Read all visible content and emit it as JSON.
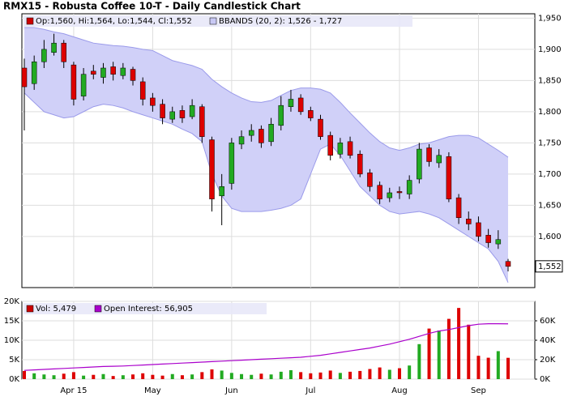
{
  "chart_data": [
    {
      "type": "candlestick",
      "title": "RMX15 - Robusta Coffee 10-T - Daily Candlestick Chart",
      "legend": [
        {
          "name": "Op:1,560, Hi:1,564, Lo:1,544, Cl:1,552",
          "color": "#cc0000"
        },
        {
          "name": "BBANDS (20, 2): 1,526 - 1,727",
          "color": "#c8c8f4"
        }
      ],
      "categories": [
        null,
        null,
        null,
        null,
        null,
        "Apr 15",
        null,
        null,
        null,
        null,
        null,
        null,
        null,
        "May",
        null,
        null,
        null,
        null,
        null,
        null,
        null,
        "Jun",
        null,
        null,
        null,
        null,
        null,
        null,
        null,
        "Jul",
        null,
        null,
        null,
        null,
        null,
        null,
        null,
        null,
        "Aug",
        null,
        null,
        null,
        null,
        null,
        null,
        null,
        "Sep",
        null,
        null,
        null
      ],
      "open": [
        1870,
        1845,
        1880,
        1895,
        1910,
        1875,
        1825,
        1865,
        1855,
        1872,
        1858,
        1868,
        1848,
        1822,
        1812,
        1788,
        1802,
        1792,
        1808,
        1755,
        1665,
        1685,
        1748,
        1762,
        1772,
        1752,
        1778,
        1808,
        1822,
        1802,
        1788,
        1762,
        1732,
        1752,
        1732,
        1702,
        1682,
        1662,
        1672,
        1668,
        1692,
        1742,
        1718,
        1728,
        1662,
        1628,
        1622,
        1602,
        1588,
        1560
      ],
      "high": [
        1885,
        1890,
        1915,
        1925,
        1915,
        1880,
        1870,
        1875,
        1878,
        1880,
        1878,
        1872,
        1855,
        1830,
        1820,
        1808,
        1810,
        1820,
        1812,
        1760,
        1700,
        1758,
        1770,
        1780,
        1778,
        1790,
        1825,
        1835,
        1828,
        1808,
        1795,
        1768,
        1758,
        1760,
        1738,
        1708,
        1688,
        1678,
        1680,
        1698,
        1750,
        1748,
        1740,
        1735,
        1668,
        1640,
        1632,
        1612,
        1610,
        1564
      ],
      "low": [
        1770,
        1835,
        1870,
        1890,
        1870,
        1810,
        1818,
        1852,
        1845,
        1850,
        1852,
        1842,
        1810,
        1800,
        1780,
        1782,
        1782,
        1788,
        1750,
        1640,
        1618,
        1675,
        1740,
        1752,
        1742,
        1745,
        1770,
        1800,
        1795,
        1785,
        1755,
        1722,
        1725,
        1725,
        1695,
        1672,
        1652,
        1655,
        1660,
        1660,
        1685,
        1712,
        1710,
        1655,
        1620,
        1610,
        1592,
        1582,
        1580,
        1544
      ],
      "close": [
        1840,
        1880,
        1900,
        1910,
        1880,
        1820,
        1860,
        1860,
        1870,
        1860,
        1870,
        1850,
        1820,
        1810,
        1790,
        1800,
        1790,
        1810,
        1760,
        1660,
        1680,
        1750,
        1760,
        1770,
        1750,
        1780,
        1810,
        1820,
        1800,
        1790,
        1760,
        1730,
        1750,
        1730,
        1700,
        1680,
        1660,
        1670,
        1670,
        1690,
        1740,
        1720,
        1730,
        1660,
        1630,
        1620,
        1600,
        1590,
        1595,
        1552
      ],
      "up_color": "#22aa22",
      "down_color": "#dd0000",
      "bands": {
        "color": "#d0d0f8",
        "line_color": "#9a9aea",
        "upper": [
          1935,
          1935,
          1932,
          1928,
          1925,
          1920,
          1915,
          1910,
          1908,
          1906,
          1905,
          1903,
          1900,
          1898,
          1890,
          1882,
          1878,
          1874,
          1868,
          1852,
          1840,
          1830,
          1822,
          1816,
          1815,
          1818,
          1826,
          1834,
          1838,
          1838,
          1836,
          1830,
          1815,
          1798,
          1782,
          1766,
          1752,
          1742,
          1738,
          1742,
          1748,
          1750,
          1755,
          1760,
          1762,
          1762,
          1758,
          1748,
          1738,
          1727
        ],
        "lower": [
          1830,
          1815,
          1800,
          1795,
          1790,
          1792,
          1800,
          1808,
          1812,
          1810,
          1806,
          1800,
          1795,
          1790,
          1785,
          1780,
          1772,
          1765,
          1752,
          1700,
          1665,
          1645,
          1640,
          1640,
          1640,
          1642,
          1645,
          1650,
          1660,
          1700,
          1740,
          1748,
          1730,
          1705,
          1680,
          1665,
          1650,
          1640,
          1636,
          1638,
          1640,
          1636,
          1630,
          1620,
          1610,
          1600,
          1590,
          1580,
          1560,
          1526
        ]
      },
      "ylim": [
        1518,
        1957
      ],
      "yticks": [
        {
          "value": 1600,
          "label": "1,600"
        },
        {
          "value": 1650,
          "label": "1,650"
        },
        {
          "value": 1700,
          "label": "1,700"
        },
        {
          "value": 1750,
          "label": "1,750"
        },
        {
          "value": 1800,
          "label": "1,800"
        },
        {
          "value": 1850,
          "label": "1,850"
        },
        {
          "value": 1900,
          "label": "1,900"
        },
        {
          "value": 1950,
          "label": "1,950"
        }
      ],
      "last_price": {
        "value": 1552,
        "label": "1,552"
      },
      "grid": true
    },
    {
      "type": "bar",
      "series": [
        {
          "name": "Vol: 5,479",
          "color": "#cc0000",
          "values": [
            2100,
            1500,
            1200,
            1000,
            1400,
            1800,
            900,
            1100,
            1300,
            800,
            1000,
            1200,
            1500,
            1100,
            900,
            1300,
            1000,
            1200,
            1800,
            2500,
            2200,
            1600,
            1300,
            1100,
            1400,
            1200,
            1900,
            2300,
            1800,
            1500,
            1700,
            2200,
            1600,
            1900,
            2100,
            2600,
            3000,
            2400,
            2800,
            3500,
            9000,
            13000,
            12500,
            15500,
            18300,
            14000,
            6000,
            5500,
            7200,
            5479
          ]
        },
        {
          "name": "Open Interest: 56,905",
          "color": "#aa00cc",
          "axis": "y2",
          "values": [
            9000,
            9500,
            10000,
            10500,
            11000,
            11500,
            12000,
            12500,
            13000,
            13200,
            13500,
            14000,
            14500,
            15000,
            15500,
            16000,
            16500,
            17000,
            17500,
            18000,
            18500,
            19000,
            19500,
            20000,
            20500,
            21000,
            21500,
            22000,
            22500,
            23500,
            24500,
            26000,
            27500,
            29000,
            30500,
            32000,
            34000,
            36000,
            38500,
            41000,
            44000,
            47000,
            49500,
            51000,
            53000,
            55000,
            56500,
            57000,
            57000,
            56905
          ]
        }
      ],
      "ylim": [
        0,
        20000
      ],
      "yticks": [
        {
          "value": 0,
          "label": "0K"
        },
        {
          "value": 5000,
          "label": "5K"
        },
        {
          "value": 10000,
          "label": "10K"
        },
        {
          "value": 15000,
          "label": "15K"
        },
        {
          "value": 20000,
          "label": "20K"
        }
      ],
      "y2lim": [
        0,
        80000
      ],
      "y2ticks": [
        {
          "value": 0,
          "label": "0K"
        },
        {
          "value": 20000,
          "label": "20K"
        },
        {
          "value": 40000,
          "label": "40K"
        },
        {
          "value": 60000,
          "label": "60K"
        }
      ],
      "grid": true
    }
  ]
}
